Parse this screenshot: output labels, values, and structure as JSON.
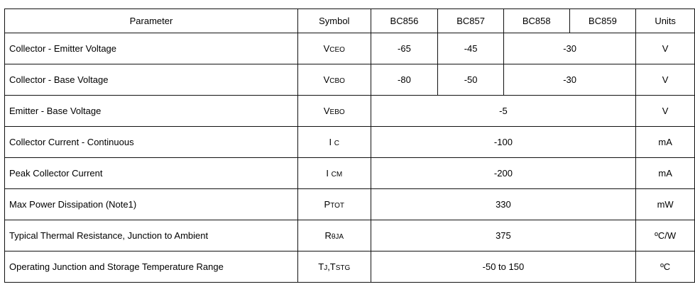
{
  "headers": [
    "Parameter",
    "Symbol",
    "BC856",
    "BC857",
    "BC858",
    "BC859",
    "Units"
  ],
  "rows": [
    {
      "param": "Collector - Emitter Voltage",
      "sym": "V",
      "sub": "CEO",
      "vals": [
        "-65",
        "-45",
        "-30"
      ],
      "unit": "V"
    },
    {
      "param": "Collector - Base Voltage",
      "sym": "V",
      "sub": "CBO",
      "vals": [
        "-80",
        "-50",
        "-30"
      ],
      "unit": "V"
    },
    {
      "param": "Emitter - Base Voltage",
      "sym": "V",
      "sub": "EBO",
      "vals": [
        "-5"
      ],
      "unit": "V"
    },
    {
      "param": "Collector Current - Continuous",
      "sym": "I ",
      "sub": "C",
      "vals": [
        "-100"
      ],
      "unit": "mA"
    },
    {
      "param": "Peak Collector Current",
      "sym": "I ",
      "sub": "CM",
      "vals": [
        "-200"
      ],
      "unit": "mA"
    },
    {
      "param": "Max Power Dissipation (Note1)",
      "sym": "P",
      "sub": "TOT",
      "vals": [
        "330"
      ],
      "unit": "mW"
    },
    {
      "param": "Typical Thermal Resistance, Junction to Ambient",
      "sym": "R",
      "sub": "θJA",
      "vals": [
        "375"
      ],
      "unit": "ºC/W"
    },
    {
      "param": "Operating Junction and Storage Temperature Range",
      "sym": "T",
      "sub": "J",
      "sym2": ",T",
      "sub2": "STG",
      "vals": [
        "-50 to 150"
      ],
      "unit": "ºC"
    }
  ]
}
